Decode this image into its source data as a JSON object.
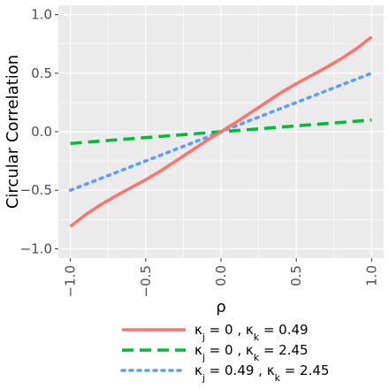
{
  "chart_data": {
    "type": "line",
    "xlabel": "ρ",
    "ylabel": "Circular Correlation",
    "xlim": [
      -1.08,
      1.08
    ],
    "ylim": [
      -1.08,
      1.08
    ],
    "x_ticks": [
      -1.0,
      -0.5,
      0.0,
      0.5,
      1.0
    ],
    "x_tick_labels": [
      "−1.0",
      "−0.5",
      "0.0",
      "0.5",
      "1.0"
    ],
    "y_ticks": [
      1.0,
      0.5,
      0.0,
      -0.5,
      -1.0
    ],
    "y_tick_labels": [
      "1.0",
      "0.5",
      "0.0",
      "−0.5",
      "−1.0"
    ],
    "grid": true,
    "legend_position": "bottom",
    "series": [
      {
        "name": "κj = 0 , κk = 0.49",
        "label_parts": [
          "κ",
          "j",
          " = 0 , κ",
          "k",
          " = 0.49"
        ],
        "color": "#F8766D",
        "style": "solid",
        "x": [
          -1.0,
          -0.9,
          -0.8,
          -0.7,
          -0.6,
          -0.5,
          -0.4,
          -0.3,
          -0.2,
          -0.1,
          0.0,
          0.1,
          0.2,
          0.3,
          0.4,
          0.5,
          0.6,
          0.7,
          0.8,
          0.9,
          1.0
        ],
        "y": [
          -0.81,
          -0.71,
          -0.625,
          -0.55,
          -0.48,
          -0.41,
          -0.335,
          -0.25,
          -0.165,
          -0.08,
          0.0,
          0.08,
          0.165,
          0.25,
          0.335,
          0.41,
          0.48,
          0.55,
          0.625,
          0.71,
          0.81
        ]
      },
      {
        "name": "κj = 0 , κk = 2.45",
        "label_parts": [
          "κ",
          "j",
          " = 0 , κ",
          "k",
          " = 2.45"
        ],
        "color": "#00BA38",
        "style": "dashed",
        "x": [
          -1.0,
          -0.5,
          0.0,
          0.5,
          1.0
        ],
        "y": [
          -0.1,
          -0.05,
          0.0,
          0.05,
          0.1
        ]
      },
      {
        "name": "κj = 0.49 , κk = 2.45",
        "label_parts": [
          "κ",
          "j",
          " = 0.49 , κ",
          "k",
          " = 2.45"
        ],
        "color": "#619CFF",
        "style": "dotted",
        "x": [
          -1.0,
          -0.5,
          0.0,
          0.5,
          1.0
        ],
        "y": [
          -0.5,
          -0.25,
          0.0,
          0.25,
          0.5
        ]
      }
    ]
  }
}
